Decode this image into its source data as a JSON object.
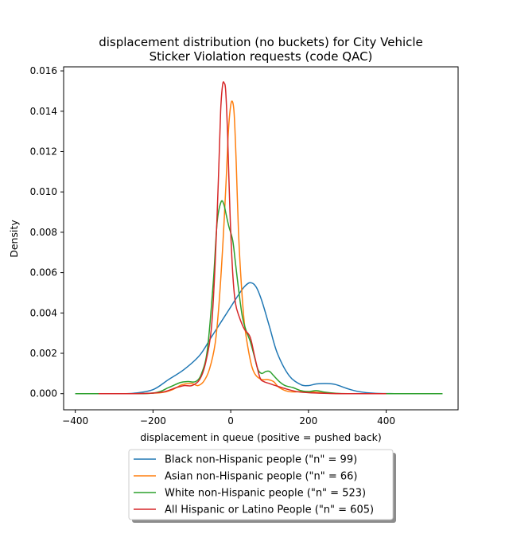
{
  "chart_data": {
    "type": "line",
    "title": [
      "displacement distribution (no buckets)  for City Vehicle",
      "Sticker Violation requests (code QAC)"
    ],
    "xlabel": "displacement in queue (positive = pushed back)",
    "ylabel": "Density",
    "xlim": [
      -430,
      585
    ],
    "ylim": [
      -0.0008,
      0.0162
    ],
    "xticks": [
      -400,
      -200,
      0,
      200,
      400
    ],
    "xtick_labels": [
      "−400",
      "−200",
      "0",
      "200",
      "400"
    ],
    "yticks": [
      0.0,
      0.002,
      0.004,
      0.006,
      0.008,
      0.01,
      0.012,
      0.014,
      0.016
    ],
    "ytick_labels": [
      "0.000",
      "0.002",
      "0.004",
      "0.006",
      "0.008",
      "0.010",
      "0.012",
      "0.014",
      "0.016"
    ],
    "grid": false,
    "legend_position": "below",
    "series": [
      {
        "name": "Black non-Hispanic people (\"n\" = 99)",
        "color": "#1f77b4",
        "x": [
          -400,
          -300,
          -250,
          -200,
          -160,
          -120,
          -80,
          -50,
          -20,
          0,
          20,
          35,
          50,
          65,
          80,
          100,
          120,
          150,
          180,
          200,
          220,
          245,
          270,
          300,
          330,
          370,
          420,
          490
        ],
        "y": [
          0.0,
          0.0,
          2e-05,
          0.0002,
          0.0007,
          0.0012,
          0.0019,
          0.0028,
          0.0037,
          0.0043,
          0.0049,
          0.0053,
          0.0055,
          0.0053,
          0.0046,
          0.0033,
          0.002,
          0.0009,
          0.00045,
          0.0004,
          0.00048,
          0.0005,
          0.00045,
          0.00025,
          0.0001,
          2e-05,
          0.0,
          0.0
        ]
      },
      {
        "name": "Asian non-Hispanic people (\"n\" = 66)",
        "color": "#ff7f0e",
        "x": [
          -330,
          -250,
          -180,
          -150,
          -125,
          -100,
          -85,
          -70,
          -55,
          -40,
          -30,
          -20,
          -12,
          -6,
          0,
          5,
          9,
          14,
          20,
          27,
          35,
          45,
          55,
          65,
          80,
          95,
          110,
          125,
          150,
          180,
          200,
          230,
          270,
          330,
          400
        ],
        "y": [
          0.0,
          0.0,
          5e-05,
          0.0002,
          0.00045,
          0.0005,
          0.0004,
          0.0006,
          0.0012,
          0.0025,
          0.0045,
          0.0075,
          0.0105,
          0.013,
          0.0143,
          0.01445,
          0.0138,
          0.0115,
          0.008,
          0.0055,
          0.0035,
          0.0022,
          0.0013,
          0.0009,
          0.0007,
          0.0007,
          0.0006,
          0.0003,
          0.0001,
          0.0001,
          0.0001,
          5e-05,
          0.0,
          0.0,
          0.0
        ]
      },
      {
        "name": "White non-Hispanic people (\"n\" = 523)",
        "color": "#2ca02c",
        "x": [
          -400,
          -300,
          -200,
          -160,
          -130,
          -110,
          -90,
          -75,
          -60,
          -45,
          -35,
          -25,
          -18,
          -12,
          -5,
          5,
          12,
          20,
          30,
          40,
          50,
          60,
          70,
          80,
          90,
          100,
          110,
          125,
          140,
          160,
          180,
          200,
          220,
          240,
          270,
          300,
          400,
          545
        ],
        "y": [
          0.0,
          0.0,
          3e-05,
          0.0003,
          0.00055,
          0.0006,
          0.0006,
          0.001,
          0.0022,
          0.0055,
          0.0085,
          0.0095,
          0.0094,
          0.0089,
          0.0083,
          0.0076,
          0.0065,
          0.0052,
          0.0038,
          0.0031,
          0.0026,
          0.0019,
          0.0012,
          0.001,
          0.0011,
          0.0011,
          0.0009,
          0.0006,
          0.0004,
          0.0003,
          0.00015,
          0.0001,
          0.00015,
          8e-05,
          2e-05,
          0.0,
          0.0,
          0.0
        ]
      },
      {
        "name": "All Hispanic or Latino People (\"n\" = 605)",
        "color": "#d62728",
        "x": [
          -340,
          -250,
          -200,
          -170,
          -140,
          -120,
          -100,
          -80,
          -65,
          -50,
          -40,
          -32,
          -26,
          -21,
          -17,
          -13,
          -8,
          -2,
          5,
          12,
          22,
          35,
          50,
          62,
          75,
          85,
          100,
          115,
          140,
          170,
          200,
          240,
          300,
          400
        ],
        "y": [
          0.0,
          0.0,
          3e-05,
          0.0001,
          0.0003,
          0.0004,
          0.0004,
          0.0007,
          0.0015,
          0.0032,
          0.0065,
          0.0105,
          0.014,
          0.0153,
          0.0154,
          0.015,
          0.0128,
          0.009,
          0.006,
          0.0045,
          0.0038,
          0.0032,
          0.0028,
          0.0018,
          0.0008,
          0.0006,
          0.0005,
          0.0004,
          0.00025,
          0.0001,
          5e-05,
          2e-05,
          0.0,
          0.0
        ]
      }
    ]
  }
}
